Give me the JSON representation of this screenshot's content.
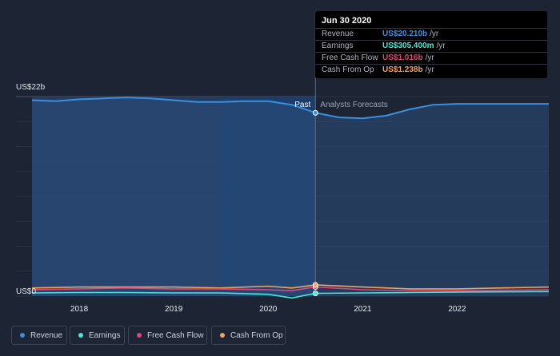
{
  "chart_data": {
    "type": "area",
    "y_axis": {
      "top_label": "US$22b",
      "bottom_label": "US$0",
      "ylim": [
        0,
        22
      ]
    },
    "x_ticks": [
      "2018",
      "2019",
      "2020",
      "2021",
      "2022"
    ],
    "x_range": [
      2017.5,
      2022.97
    ],
    "divider_x": 2020.5,
    "past_label": "Past",
    "forecast_label": "Analysts Forecasts",
    "series": [
      {
        "name": "Revenue",
        "color": "#3b8fe0",
        "x": [
          2017.5,
          2017.75,
          2018.0,
          2018.25,
          2018.5,
          2018.75,
          2019.0,
          2019.25,
          2019.5,
          2019.75,
          2020.0,
          2020.25,
          2020.5,
          2020.75,
          2021.0,
          2021.25,
          2021.5,
          2021.75,
          2022.0,
          2022.5,
          2022.97
        ],
        "values": [
          21.6,
          21.5,
          21.7,
          21.8,
          21.9,
          21.8,
          21.6,
          21.4,
          21.4,
          21.5,
          21.5,
          21.1,
          20.21,
          19.7,
          19.6,
          19.9,
          20.6,
          21.1,
          21.2,
          21.2,
          21.2
        ]
      },
      {
        "name": "Earnings",
        "color": "#4fe3d6",
        "x": [
          2017.5,
          2018.0,
          2018.5,
          2019.0,
          2019.5,
          2020.0,
          2020.25,
          2020.5,
          2021.0,
          2021.5,
          2022.0,
          2022.97
        ],
        "values": [
          0.35,
          0.4,
          0.4,
          0.35,
          0.35,
          0.2,
          -0.2,
          0.3054,
          0.35,
          0.4,
          0.45,
          0.5
        ]
      },
      {
        "name": "Free Cash Flow",
        "color": "#e0457b",
        "x": [
          2017.5,
          2018.0,
          2018.5,
          2019.0,
          2019.5,
          2020.0,
          2020.25,
          2020.5,
          2021.0,
          2021.5,
          2022.0,
          2022.97
        ],
        "values": [
          0.7,
          0.8,
          0.9,
          0.8,
          0.8,
          0.7,
          0.6,
          1.016,
          0.7,
          0.6,
          0.6,
          0.7
        ]
      },
      {
        "name": "Cash From Op",
        "color": "#f2a35e",
        "x": [
          2017.5,
          2018.0,
          2018.5,
          2019.0,
          2019.5,
          2020.0,
          2020.25,
          2020.5,
          2021.0,
          2021.5,
          2022.0,
          2022.97
        ],
        "values": [
          0.9,
          1.0,
          1.0,
          1.0,
          0.9,
          1.1,
          0.9,
          1.238,
          1.0,
          0.8,
          0.8,
          1.0
        ]
      }
    ],
    "tooltip": {
      "date": "Jun 30 2020",
      "rows": [
        {
          "label": "Revenue",
          "value": "US$20.210b",
          "unit": "/yr",
          "color": "#3b8fe0"
        },
        {
          "label": "Earnings",
          "value": "US$305.400m",
          "unit": "/yr",
          "color": "#4fe3d6"
        },
        {
          "label": "Free Cash Flow",
          "value": "US$1.016b",
          "unit": "/yr",
          "color": "#e0457b"
        },
        {
          "label": "Cash From Op",
          "value": "US$1.238b",
          "unit": "/yr",
          "color": "#f2a35e"
        }
      ]
    },
    "legend": [
      {
        "label": "Revenue",
        "color": "#3b8fe0"
      },
      {
        "label": "Earnings",
        "color": "#4fe3d6"
      },
      {
        "label": "Free Cash Flow",
        "color": "#e0457b"
      },
      {
        "label": "Cash From Op",
        "color": "#f2a35e"
      }
    ],
    "legend_placement": "bottom-left",
    "grid": true
  }
}
